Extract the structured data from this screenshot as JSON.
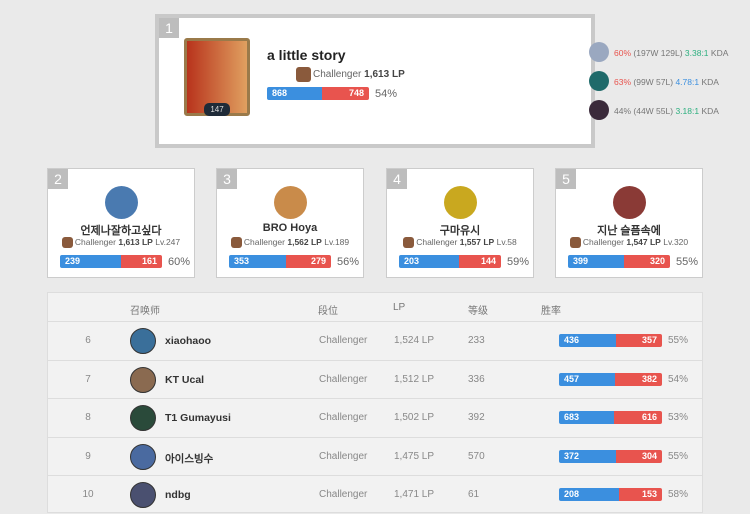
{
  "top": {
    "rank": "1",
    "name": "a little story",
    "level": "147",
    "tier": "Challenger",
    "lp": "1,613 LP",
    "wins": "868",
    "losses": "748",
    "win_rate": "54%",
    "win_fraction": 0.54,
    "champions": [
      {
        "wr": "60%",
        "record": "(197W 129L)",
        "kda": "3.38:1",
        "kda_label": "KDA",
        "wr_color": "#e8544e",
        "kda_color": "#2daf7f"
      },
      {
        "wr": "63%",
        "record": "(99W 57L)",
        "kda": "4.78:1",
        "kda_label": "KDA",
        "wr_color": "#e8544e",
        "kda_color": "#3b8fdf"
      },
      {
        "wr": "44%",
        "record": "(44W 55L)",
        "kda": "3.18:1",
        "kda_label": "KDA",
        "wr_color": "#777777",
        "kda_color": "#2daf7f"
      }
    ]
  },
  "cards": [
    {
      "rank": "2",
      "name": "언제나잘하고싶다",
      "tier": "Challenger",
      "lp": "1,613 LP",
      "level": "Lv.247",
      "wins": "239",
      "losses": "161",
      "win_rate": "60%",
      "win_fraction": 0.6,
      "color": "#4a7ab0"
    },
    {
      "rank": "3",
      "name": "BRO Hoya",
      "tier": "Challenger",
      "lp": "1,562 LP",
      "level": "Lv.189",
      "wins": "353",
      "losses": "279",
      "win_rate": "56%",
      "win_fraction": 0.56,
      "color": "#c98b4a"
    },
    {
      "rank": "4",
      "name": "구마유시",
      "tier": "Challenger",
      "lp": "1,557 LP",
      "level": "Lv.58",
      "wins": "203",
      "losses": "144",
      "win_rate": "59%",
      "win_fraction": 0.59,
      "color": "#c9a81f"
    },
    {
      "rank": "5",
      "name": "지난 슬픔속에",
      "tier": "Challenger",
      "lp": "1,547 LP",
      "level": "Lv.320",
      "wins": "399",
      "losses": "320",
      "win_rate": "55%",
      "win_fraction": 0.55,
      "color": "#8a3a36"
    }
  ],
  "table": {
    "headers": [
      "召唤师",
      "段位",
      "LP",
      "等级",
      "胜率"
    ],
    "rows": [
      {
        "rank": "6",
        "name": "xiaohaoo",
        "tier": "Challenger",
        "lp": "1,524 LP",
        "level": "233",
        "wins": "436",
        "losses": "357",
        "win_rate": "55%",
        "win_fraction": 0.55,
        "color": "#3a6f9a"
      },
      {
        "rank": "7",
        "name": "KT Ucal",
        "tier": "Challenger",
        "lp": "1,512 LP",
        "level": "336",
        "wins": "457",
        "losses": "382",
        "win_rate": "54%",
        "win_fraction": 0.54,
        "color": "#8a6a50"
      },
      {
        "rank": "8",
        "name": "T1 Gumayusi",
        "tier": "Challenger",
        "lp": "1,502 LP",
        "level": "392",
        "wins": "683",
        "losses": "616",
        "win_rate": "53%",
        "win_fraction": 0.53,
        "color": "#2a4a3a"
      },
      {
        "rank": "9",
        "name": "아이스빙수",
        "tier": "Challenger",
        "lp": "1,475 LP",
        "level": "570",
        "wins": "372",
        "losses": "304",
        "win_rate": "55%",
        "win_fraction": 0.55,
        "color": "#4a6aa0"
      },
      {
        "rank": "10",
        "name": "ndbg",
        "tier": "Challenger",
        "lp": "1,471 LP",
        "level": "61",
        "wins": "208",
        "losses": "153",
        "win_rate": "58%",
        "win_fraction": 0.58,
        "color": "#4a5070"
      }
    ]
  }
}
